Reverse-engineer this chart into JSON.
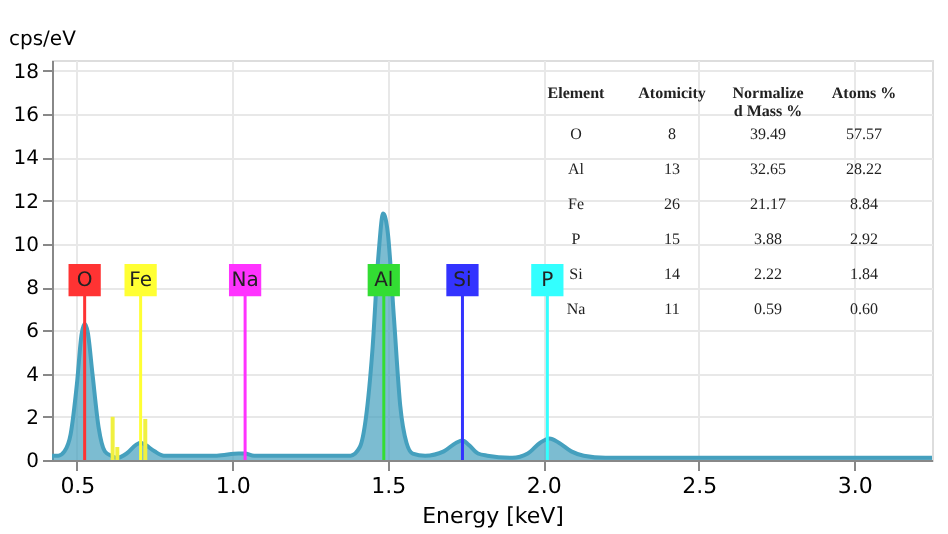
{
  "chart_data": {
    "type": "area",
    "xlabel": "Energy [keV]",
    "ylabel": "cps/eV",
    "xlim": [
      0.42,
      3.25
    ],
    "ylim": [
      0,
      18.5
    ],
    "xticks": [
      {
        "value": 0.5,
        "label": "0.5"
      },
      {
        "value": 1,
        "label": "1.0"
      },
      {
        "value": 1.5,
        "label": "1.5"
      },
      {
        "value": 2,
        "label": "2.0"
      },
      {
        "value": 2.5,
        "label": "2.5"
      },
      {
        "value": 3,
        "label": "3.0"
      }
    ],
    "yticks": [
      0,
      2,
      4,
      6,
      8,
      10,
      12,
      14,
      16,
      18
    ],
    "grid": true,
    "legend": false,
    "series": [
      {
        "color": "#45a0be",
        "x": [
          0.42,
          0.44,
          0.46,
          0.48,
          0.5,
          0.515,
          0.525,
          0.535,
          0.55,
          0.57,
          0.59,
          0.61,
          0.63,
          0.66,
          0.69,
          0.705,
          0.72,
          0.75,
          0.78,
          0.85,
          0.95,
          1.02,
          1.04,
          1.07,
          1.15,
          1.3,
          1.38,
          1.41,
          1.43,
          1.45,
          1.47,
          1.485,
          1.5,
          1.52,
          1.54,
          1.56,
          1.58,
          1.62,
          1.68,
          1.72,
          1.74,
          1.76,
          1.79,
          1.82,
          1.9,
          1.95,
          1.99,
          2.02,
          2.05,
          2.09,
          2.13,
          2.2,
          2.5,
          3.0,
          3.25
        ],
        "values": [
          0.2,
          0.2,
          0.4,
          1.2,
          3.5,
          5.8,
          6.3,
          5.9,
          4.0,
          1.5,
          0.4,
          0.2,
          0.1,
          0.3,
          0.7,
          0.8,
          0.7,
          0.4,
          0.2,
          0.2,
          0.2,
          0.3,
          0.3,
          0.2,
          0.2,
          0.2,
          0.2,
          0.6,
          2.0,
          5.0,
          9.5,
          11.4,
          10.5,
          6.5,
          2.5,
          0.8,
          0.3,
          0.2,
          0.4,
          0.8,
          0.9,
          0.7,
          0.3,
          0.2,
          0.1,
          0.3,
          0.8,
          1.0,
          0.8,
          0.4,
          0.2,
          0.1,
          0.1,
          0.1,
          0.1
        ]
      },
      {
        "type": "bar",
        "color": "#f0f040",
        "x": [
          0.615,
          0.63,
          0.72
        ],
        "values": [
          2.0,
          0.6,
          1.9
        ]
      }
    ],
    "ref_lines": [
      {
        "axis": "x",
        "value": 0.525,
        "label": "O",
        "color": "#ff3333"
      },
      {
        "axis": "x",
        "value": 0.705,
        "label": "Fe",
        "color": "#ffff33"
      },
      {
        "axis": "x",
        "value": 1.041,
        "label": "Na",
        "color": "#ff33ff"
      },
      {
        "axis": "x",
        "value": 1.487,
        "label": "Al",
        "color": "#33dd33"
      },
      {
        "axis": "x",
        "value": 1.74,
        "label": "Si",
        "color": "#3333ff"
      },
      {
        "axis": "x",
        "value": 2.013,
        "label": "P",
        "color": "#33ffff"
      }
    ],
    "annotations": [
      "Element",
      "Atomicity",
      "Normalize d Mass %",
      "Atoms %",
      "O",
      "8",
      "39.49",
      "57.57",
      "Al",
      "13",
      "32.65",
      "28.22",
      "Fe",
      "26",
      "21.17",
      "8.84",
      "P",
      "15",
      "3.88",
      "2.92",
      "Si",
      "14",
      "2.22",
      "1.84",
      "Na",
      "11",
      "0.59",
      "0.60"
    ]
  }
}
